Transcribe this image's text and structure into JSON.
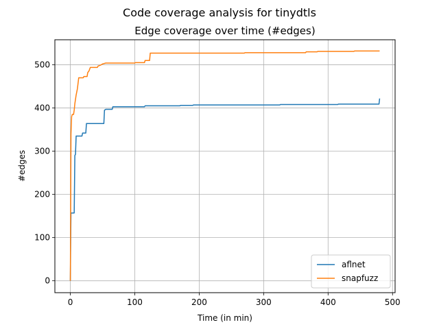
{
  "chart_data": {
    "type": "line",
    "suptitle": "Code coverage analysis for tinydtls",
    "title": "Edge coverage over time (#edges)",
    "xlabel": "Time (in min)",
    "ylabel": "#edges",
    "xlim": [
      -24,
      504
    ],
    "ylim": [
      -27.5,
      558
    ],
    "xticks": [
      0,
      100,
      200,
      300,
      400,
      500
    ],
    "yticks": [
      0,
      100,
      200,
      300,
      400,
      500
    ],
    "grid": true,
    "legend_position": "lower-right",
    "series": [
      {
        "name": "aflnet",
        "color": "#1f77b4",
        "points": [
          [
            0,
            0
          ],
          [
            0.5,
            90
          ],
          [
            1,
            157
          ],
          [
            6,
            157
          ],
          [
            7,
            290
          ],
          [
            8,
            293
          ],
          [
            9,
            335
          ],
          [
            18,
            335
          ],
          [
            19,
            342
          ],
          [
            24,
            342
          ],
          [
            25,
            364
          ],
          [
            52,
            364
          ],
          [
            53,
            395
          ],
          [
            55,
            397
          ],
          [
            65,
            397
          ],
          [
            66,
            403
          ],
          [
            115,
            403
          ],
          [
            116,
            405
          ],
          [
            170,
            405
          ],
          [
            171,
            406
          ],
          [
            190,
            406
          ],
          [
            191,
            407
          ],
          [
            325,
            407
          ],
          [
            326,
            408
          ],
          [
            415,
            408
          ],
          [
            416,
            409
          ],
          [
            479,
            409
          ],
          [
            480,
            422
          ]
        ]
      },
      {
        "name": "snapfuzz",
        "color": "#ff7f0e",
        "points": [
          [
            0,
            0
          ],
          [
            0.5,
            150
          ],
          [
            1,
            340
          ],
          [
            2,
            380
          ],
          [
            3,
            385
          ],
          [
            5,
            385
          ],
          [
            6,
            395
          ],
          [
            7,
            410
          ],
          [
            9,
            430
          ],
          [
            11,
            445
          ],
          [
            13,
            470
          ],
          [
            20,
            470
          ],
          [
            21,
            473
          ],
          [
            26,
            473
          ],
          [
            27,
            482
          ],
          [
            29,
            486
          ],
          [
            31,
            494
          ],
          [
            42,
            494
          ],
          [
            43,
            497
          ],
          [
            48,
            500
          ],
          [
            50,
            502
          ],
          [
            55,
            504
          ],
          [
            100,
            504
          ],
          [
            101,
            505
          ],
          [
            115,
            505
          ],
          [
            116,
            510
          ],
          [
            123,
            510
          ],
          [
            124,
            527
          ],
          [
            270,
            527
          ],
          [
            271,
            528
          ],
          [
            365,
            528
          ],
          [
            366,
            530
          ],
          [
            383,
            530
          ],
          [
            384,
            531
          ],
          [
            440,
            531
          ],
          [
            441,
            532
          ],
          [
            480,
            532
          ]
        ]
      }
    ]
  }
}
